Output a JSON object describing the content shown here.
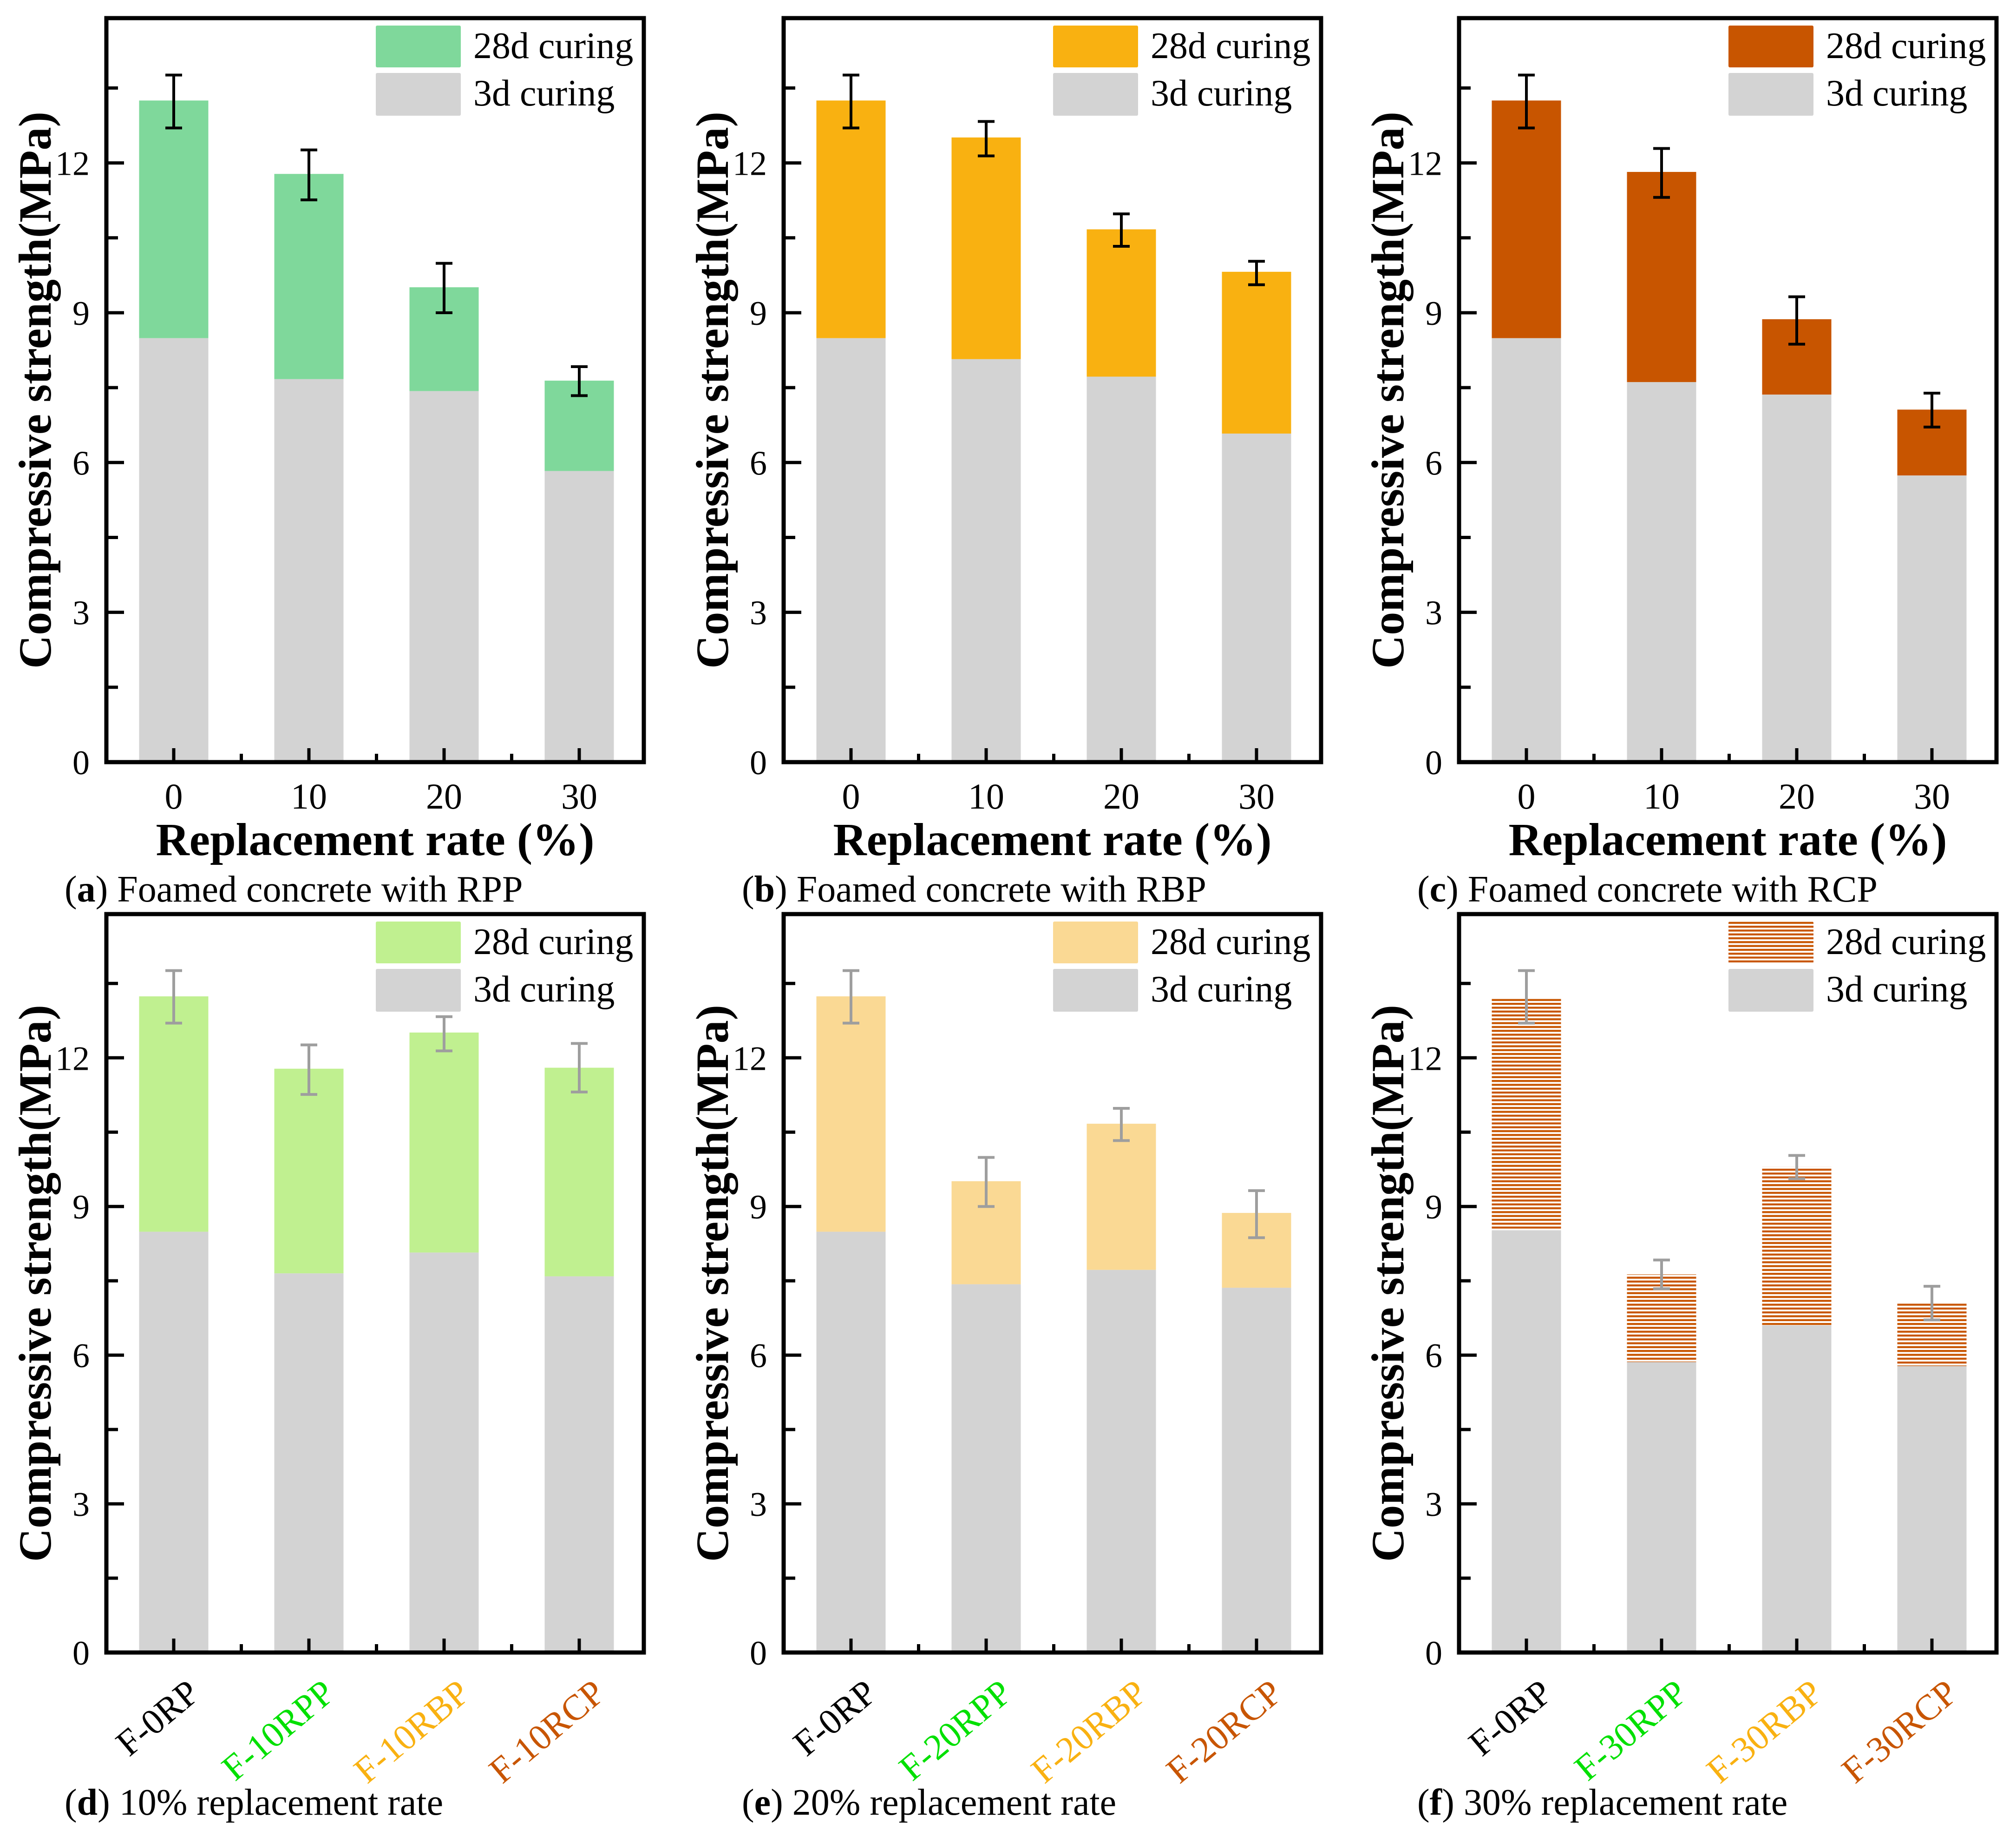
{
  "figure": {
    "colors": {
      "base_3d": "#d3d3d3",
      "frame": "#000000",
      "error_dark": "#000000",
      "error_gray": "#9e9e9e",
      "rpp": "#7fd89b",
      "rbp": "#f9b111",
      "rcp": "#c85500",
      "rpp_light": "#c0f090",
      "rbp_light": "#fad994",
      "label_black": "#000000",
      "label_green": "#00e000",
      "label_orange": "#f9b111",
      "label_brown": "#c85500"
    }
  },
  "chart_data": [
    {
      "id": "a",
      "type": "bar",
      "stacked": true,
      "title": "",
      "caption_letter": "(a)",
      "caption_text": " Foamed concrete with RPP",
      "xlabel": "Replacement rate (%)",
      "ylabel": "Compressive strength(MPa)",
      "ylim": [
        0,
        14.9
      ],
      "yticks": [
        0,
        3,
        6,
        9,
        12
      ],
      "categories": [
        "0",
        "10",
        "20",
        "30"
      ],
      "category_colors": [
        "label_black",
        "label_black",
        "label_black",
        "label_black"
      ],
      "rotate_categories": false,
      "legend": [
        "28d curing",
        "3d curing"
      ],
      "legend_position": "top-right",
      "series": [
        {
          "name": "3d curing",
          "color": "base_3d",
          "values": [
            8.49,
            7.67,
            7.43,
            5.83
          ]
        },
        {
          "name": "28d curing",
          "color": "rpp",
          "pattern": "solid",
          "totals": [
            13.25,
            11.78,
            9.51,
            7.64
          ]
        }
      ],
      "error_bars": {
        "color": "error_dark",
        "low": [
          12.7,
          11.26,
          9.0,
          7.34
        ],
        "high": [
          13.76,
          12.26,
          9.99,
          7.92
        ]
      }
    },
    {
      "id": "b",
      "type": "bar",
      "stacked": true,
      "title": "",
      "caption_letter": "(b)",
      "caption_text": " Foamed concrete with RBP",
      "xlabel": "Replacement rate (%)",
      "ylabel": "Compressive strength(MPa)",
      "ylim": [
        0,
        14.9
      ],
      "yticks": [
        0,
        3,
        6,
        9,
        12
      ],
      "categories": [
        "0",
        "10",
        "20",
        "30"
      ],
      "category_colors": [
        "label_black",
        "label_black",
        "label_black",
        "label_black"
      ],
      "rotate_categories": false,
      "legend": [
        "28d curing",
        "3d curing"
      ],
      "legend_position": "top-right",
      "series": [
        {
          "name": "3d curing",
          "color": "base_3d",
          "values": [
            8.49,
            8.07,
            7.72,
            6.58
          ]
        },
        {
          "name": "28d curing",
          "color": "rbp",
          "pattern": "solid",
          "totals": [
            13.25,
            12.51,
            10.67,
            9.82
          ]
        }
      ],
      "error_bars": {
        "color": "error_dark",
        "low": [
          12.7,
          12.14,
          10.33,
          9.56
        ],
        "high": [
          13.76,
          12.83,
          10.98,
          10.03
        ]
      }
    },
    {
      "id": "c",
      "type": "bar",
      "stacked": true,
      "title": "",
      "caption_letter": "(c)",
      "caption_text": " Foamed concrete with RCP",
      "xlabel": "Replacement rate (%)",
      "ylabel": "Compressive strength(MPa)",
      "ylim": [
        0,
        14.9
      ],
      "yticks": [
        0,
        3,
        6,
        9,
        12
      ],
      "categories": [
        "0",
        "10",
        "20",
        "30"
      ],
      "category_colors": [
        "label_black",
        "label_black",
        "label_black",
        "label_black"
      ],
      "rotate_categories": false,
      "legend": [
        "28d curing",
        "3d curing"
      ],
      "legend_position": "top-right",
      "series": [
        {
          "name": "3d curing",
          "color": "base_3d",
          "values": [
            8.49,
            7.61,
            7.36,
            5.74
          ]
        },
        {
          "name": "28d curing",
          "color": "rcp",
          "pattern": "solid",
          "totals": [
            13.25,
            11.82,
            8.87,
            7.06
          ]
        }
      ],
      "error_bars": {
        "color": "error_dark",
        "low": [
          12.7,
          11.31,
          8.37,
          6.71
        ],
        "high": [
          13.76,
          12.29,
          9.32,
          7.39
        ]
      }
    },
    {
      "id": "d",
      "type": "bar",
      "stacked": true,
      "title": "",
      "caption_letter": "(d)",
      "caption_text": " 10% replacement rate",
      "xlabel": "",
      "ylabel": "Compressive strength(MPa)",
      "ylim": [
        0,
        14.9
      ],
      "yticks": [
        0,
        3,
        6,
        9,
        12
      ],
      "categories": [
        "F-0RP",
        "F-10RPP",
        "F-10RBP",
        "F-10RCP"
      ],
      "category_colors": [
        "label_black",
        "label_green",
        "label_orange",
        "label_brown"
      ],
      "rotate_categories": true,
      "legend": [
        "28d curing",
        "3d curing"
      ],
      "legend_position": "top-right",
      "series": [
        {
          "name": "3d curing",
          "color": "base_3d",
          "values": [
            8.49,
            7.65,
            8.07,
            7.59
          ]
        },
        {
          "name": "28d curing",
          "color": "rpp_light",
          "pattern": "solid",
          "totals": [
            13.24,
            11.78,
            12.51,
            11.8
          ]
        }
      ],
      "error_bars": {
        "color": "error_gray",
        "low": [
          12.7,
          11.26,
          12.14,
          11.31
        ],
        "high": [
          13.76,
          12.26,
          12.83,
          12.29
        ]
      }
    },
    {
      "id": "e",
      "type": "bar",
      "stacked": true,
      "title": "",
      "caption_letter": "(e)",
      "caption_text": " 20% replacement rate",
      "xlabel": "",
      "ylabel": "Compressive strength(MPa)",
      "ylim": [
        0,
        14.9
      ],
      "yticks": [
        0,
        3,
        6,
        9,
        12
      ],
      "categories": [
        "F-0RP",
        "F-20RPP",
        "F-20RBP",
        "F-20RCP"
      ],
      "category_colors": [
        "label_black",
        "label_green",
        "label_orange",
        "label_brown"
      ],
      "rotate_categories": true,
      "legend": [
        "28d curing",
        "3d curing"
      ],
      "legend_position": "top-right",
      "series": [
        {
          "name": "3d curing",
          "color": "base_3d",
          "values": [
            8.49,
            7.43,
            7.72,
            7.36
          ]
        },
        {
          "name": "28d curing",
          "color": "rbp_light",
          "pattern": "solid",
          "totals": [
            13.24,
            9.51,
            10.67,
            8.87
          ]
        }
      ],
      "error_bars": {
        "color": "error_gray",
        "low": [
          12.7,
          9.0,
          10.33,
          8.37
        ],
        "high": [
          13.76,
          9.99,
          10.98,
          9.32
        ]
      }
    },
    {
      "id": "f",
      "type": "bar",
      "stacked": true,
      "title": "",
      "caption_letter": "(f)",
      "caption_text": " 30% replacement rate",
      "xlabel": "",
      "ylabel": "Compressive strength(MPa)",
      "ylim": [
        0,
        14.9
      ],
      "yticks": [
        0,
        3,
        6,
        9,
        12
      ],
      "categories": [
        "F-0RP",
        "F-30RPP",
        "F-30RBP",
        "F-30RCP"
      ],
      "category_colors": [
        "label_black",
        "label_green",
        "label_orange",
        "label_brown"
      ],
      "rotate_categories": true,
      "legend": [
        "28d curing",
        "3d curing"
      ],
      "legend_position": "top-right",
      "series": [
        {
          "name": "3d curing",
          "color": "base_3d",
          "values": [
            8.52,
            5.86,
            6.6,
            5.78
          ]
        },
        {
          "name": "28d curing",
          "color": "rcp",
          "pattern": "horizontal-stripes",
          "totals": [
            13.22,
            7.63,
            9.8,
            7.05
          ]
        }
      ],
      "error_bars": {
        "color": "error_gray",
        "low": [
          12.7,
          7.34,
          9.56,
          6.71
        ],
        "high": [
          13.76,
          7.92,
          10.03,
          7.39
        ]
      }
    }
  ]
}
